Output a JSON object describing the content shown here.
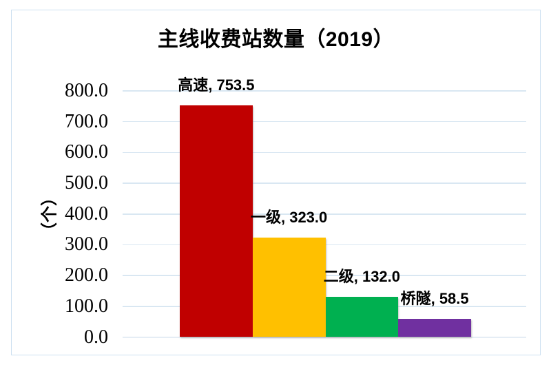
{
  "chart_data": {
    "type": "bar",
    "title": "主线收费站数量（2019）",
    "ylabel": "（个）",
    "xlabel": "",
    "categories": [
      "高速",
      "一级",
      "二级",
      "桥隧"
    ],
    "values": [
      753.5,
      323.0,
      132.0,
      58.5
    ],
    "data_labels": [
      "高速, 753.5",
      "一级, 323.0",
      "二级, 132.0",
      "桥隧, 58.5"
    ],
    "bar_colors": [
      "#C00000",
      "#FFC000",
      "#00B050",
      "#7030A0"
    ],
    "ylim": [
      0,
      800
    ],
    "ytick_interval": 100,
    "ytick_labels": [
      "0.0",
      "100.0",
      "200.0",
      "300.0",
      "400.0",
      "500.0",
      "600.0",
      "700.0",
      "800.0"
    ],
    "grid": true,
    "legend": "none",
    "colors": {
      "grid": "#d9e7f2",
      "axis": "#c3d6e7",
      "frame_border": "#cbdff0",
      "text": "#000000"
    }
  }
}
